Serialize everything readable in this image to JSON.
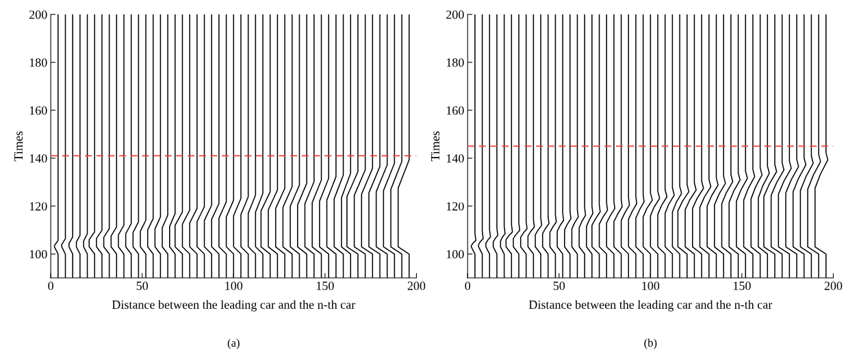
{
  "chart_data": [
    {
      "type": "line",
      "xlabel": "Distance between the leading car and the n-th car",
      "ylabel": "Times",
      "annotations": [
        "(a)"
      ],
      "xlim": [
        0,
        200
      ],
      "ylim": [
        90,
        200
      ],
      "xticks": [
        0,
        50,
        100,
        150,
        200
      ],
      "yticks": [
        100,
        120,
        140,
        160,
        180,
        200
      ],
      "ref_lines": [
        {
          "axis": "y",
          "value": 141,
          "color": "#e8403a",
          "line_style": "dashed"
        }
      ],
      "series": [
        {
          "color": "#000000",
          "x": [
            4,
            4,
            2,
            2,
            3,
            4,
            4
          ],
          "values": [
            90,
            100,
            103,
            103.5,
            104.6,
            105.7,
            200
          ]
        },
        {
          "color": "#000000",
          "x": [
            8,
            8,
            6,
            6,
            7,
            8,
            8
          ],
          "values": [
            90,
            100,
            103,
            104,
            105.2,
            106.4,
            200
          ]
        },
        {
          "color": "#000000",
          "x": [
            12,
            12,
            10,
            10,
            11,
            12,
            12
          ],
          "values": [
            90,
            100,
            103,
            104.5,
            105.8,
            107.1,
            200
          ]
        },
        {
          "color": "#000000",
          "x": [
            16,
            16,
            14,
            14,
            15,
            16,
            16
          ],
          "values": [
            90,
            100,
            103,
            105,
            106.4,
            107.8,
            200
          ]
        },
        {
          "color": "#000000",
          "x": [
            20,
            20,
            18,
            18,
            19,
            20,
            20
          ],
          "values": [
            90,
            100,
            103,
            105.5,
            107,
            108.5,
            200
          ]
        },
        {
          "color": "#000000",
          "x": [
            24,
            24,
            21,
            21,
            22.5,
            24,
            24
          ],
          "values": [
            90,
            100,
            103,
            106,
            107.6,
            109.2,
            200
          ]
        },
        {
          "color": "#000000",
          "x": [
            28,
            28,
            25,
            25,
            26.5,
            28,
            28
          ],
          "values": [
            90,
            100,
            103,
            106.5,
            108.2,
            109.9,
            200
          ]
        },
        {
          "color": "#000000",
          "x": [
            32,
            32,
            29,
            29,
            30.5,
            32,
            32
          ],
          "values": [
            90,
            100,
            103,
            107,
            108.8,
            110.6,
            200
          ]
        },
        {
          "color": "#000000",
          "x": [
            36,
            36,
            33,
            33,
            34.5,
            36,
            36
          ],
          "values": [
            90,
            100,
            103,
            107.5,
            109.4,
            111.3,
            200
          ]
        },
        {
          "color": "#000000",
          "x": [
            40,
            40,
            37,
            37,
            38.5,
            40,
            40
          ],
          "values": [
            90,
            100,
            103,
            108,
            110,
            112,
            200
          ]
        },
        {
          "color": "#000000",
          "x": [
            44,
            44,
            41,
            41,
            42.5,
            44,
            44
          ],
          "values": [
            90,
            100,
            103,
            108.5,
            110.6,
            112.7,
            200
          ]
        },
        {
          "color": "#000000",
          "x": [
            48,
            48,
            45,
            45,
            46.5,
            48,
            48
          ],
          "values": [
            90,
            100,
            103,
            109,
            111.2,
            113.4,
            200
          ]
        },
        {
          "color": "#000000",
          "x": [
            52,
            52,
            49,
            49,
            50.5,
            52,
            52
          ],
          "values": [
            90,
            100,
            103,
            109.5,
            111.8,
            114.1,
            200
          ]
        },
        {
          "color": "#000000",
          "x": [
            56,
            56,
            53,
            53,
            54.5,
            56,
            56
          ],
          "values": [
            90,
            100,
            103,
            110,
            112.4,
            114.8,
            200
          ]
        },
        {
          "color": "#000000",
          "x": [
            60,
            60,
            57,
            57,
            58.5,
            60,
            60
          ],
          "values": [
            90,
            100,
            103,
            110.5,
            113,
            115.5,
            200
          ]
        },
        {
          "color": "#000000",
          "x": [
            64,
            64,
            61,
            61,
            62.5,
            64,
            64
          ],
          "values": [
            90,
            100,
            103,
            111,
            113.6,
            116.2,
            200
          ]
        },
        {
          "color": "#000000",
          "x": [
            68,
            68,
            65,
            65,
            66.5,
            68,
            68
          ],
          "values": [
            90,
            100,
            103,
            111.5,
            114.2,
            116.9,
            200
          ]
        },
        {
          "color": "#000000",
          "x": [
            72,
            72,
            68,
            68,
            70,
            72,
            72
          ],
          "values": [
            90,
            100,
            103,
            112,
            114.8,
            117.6,
            200
          ]
        },
        {
          "color": "#000000",
          "x": [
            76,
            76,
            72,
            72,
            74,
            76,
            76
          ],
          "values": [
            90,
            100,
            103,
            112.5,
            115.4,
            118.3,
            200
          ]
        },
        {
          "color": "#000000",
          "x": [
            80,
            80,
            76,
            76,
            78,
            80,
            80
          ],
          "values": [
            90,
            100,
            103,
            113,
            116,
            119,
            200
          ]
        },
        {
          "color": "#000000",
          "x": [
            84,
            84,
            80,
            80,
            82,
            84,
            84
          ],
          "values": [
            90,
            100,
            103,
            113.5,
            116.6,
            119.7,
            200
          ]
        },
        {
          "color": "#000000",
          "x": [
            88,
            88,
            84,
            84,
            86,
            88,
            88
          ],
          "values": [
            90,
            100,
            103,
            114,
            117.2,
            120.4,
            200
          ]
        },
        {
          "color": "#000000",
          "x": [
            92,
            92,
            88,
            88,
            90,
            92,
            92
          ],
          "values": [
            90,
            100,
            103,
            114.5,
            117.8,
            121.1,
            200
          ]
        },
        {
          "color": "#000000",
          "x": [
            96,
            96,
            92,
            92,
            94,
            96,
            96
          ],
          "values": [
            90,
            100,
            103,
            115,
            118.4,
            121.8,
            200
          ]
        },
        {
          "color": "#000000",
          "x": [
            100,
            100,
            96,
            96,
            98,
            100,
            100
          ],
          "values": [
            90,
            100,
            103,
            115.5,
            119,
            122.5,
            200
          ]
        },
        {
          "color": "#000000",
          "x": [
            104,
            104,
            100,
            100,
            102,
            104,
            104
          ],
          "values": [
            90,
            100,
            103,
            116,
            119.6,
            123.2,
            200
          ]
        },
        {
          "color": "#000000",
          "x": [
            108,
            108,
            104,
            104,
            106,
            108,
            108
          ],
          "values": [
            90,
            100,
            103,
            116.5,
            120.2,
            123.9,
            200
          ]
        },
        {
          "color": "#000000",
          "x": [
            112,
            112,
            108,
            108,
            110,
            112,
            112
          ],
          "values": [
            90,
            100,
            103,
            117,
            120.8,
            124.6,
            200
          ]
        },
        {
          "color": "#000000",
          "x": [
            116,
            116,
            112,
            112,
            114,
            116,
            116
          ],
          "values": [
            90,
            100,
            103,
            117.5,
            121.4,
            125.3,
            200
          ]
        },
        {
          "color": "#000000",
          "x": [
            120,
            120,
            115,
            115,
            117.5,
            120,
            120
          ],
          "values": [
            90,
            100,
            103,
            118,
            122,
            126,
            200
          ]
        },
        {
          "color": "#000000",
          "x": [
            124,
            124,
            119,
            119,
            121.5,
            124,
            124
          ],
          "values": [
            90,
            100,
            103,
            118.5,
            122.6,
            126.7,
            200
          ]
        },
        {
          "color": "#000000",
          "x": [
            128,
            128,
            123,
            123,
            125.5,
            128,
            128
          ],
          "values": [
            90,
            100,
            103,
            119,
            123.2,
            127.4,
            200
          ]
        },
        {
          "color": "#000000",
          "x": [
            132,
            132,
            127,
            127,
            129.5,
            132,
            132
          ],
          "values": [
            90,
            100,
            103,
            119.5,
            123.8,
            128.1,
            200
          ]
        },
        {
          "color": "#000000",
          "x": [
            136,
            136,
            131,
            131,
            133.5,
            136,
            136
          ],
          "values": [
            90,
            100,
            103,
            120,
            124.4,
            128.8,
            200
          ]
        },
        {
          "color": "#000000",
          "x": [
            140,
            140,
            135,
            135,
            137.5,
            140,
            140
          ],
          "values": [
            90,
            100,
            103,
            120.5,
            125,
            129.5,
            200
          ]
        },
        {
          "color": "#000000",
          "x": [
            144,
            144,
            139,
            139,
            141.5,
            144,
            144
          ],
          "values": [
            90,
            100,
            103,
            121,
            125.6,
            130.2,
            200
          ]
        },
        {
          "color": "#000000",
          "x": [
            148,
            148,
            143,
            143,
            145.5,
            148,
            148
          ],
          "values": [
            90,
            100,
            103,
            121.5,
            126.2,
            130.9,
            200
          ]
        },
        {
          "color": "#000000",
          "x": [
            152,
            152,
            147,
            147,
            149.5,
            152,
            152
          ],
          "values": [
            90,
            100,
            103,
            122,
            126.8,
            131.6,
            200
          ]
        },
        {
          "color": "#000000",
          "x": [
            156,
            156,
            151,
            151,
            153.5,
            156,
            156
          ],
          "values": [
            90,
            100,
            103,
            122.5,
            127.4,
            132.3,
            200
          ]
        },
        {
          "color": "#000000",
          "x": [
            160,
            160,
            155,
            155,
            157.5,
            160,
            160
          ],
          "values": [
            90,
            100,
            103,
            123,
            128,
            133,
            200
          ]
        },
        {
          "color": "#000000",
          "x": [
            164,
            164,
            159,
            159,
            161.5,
            164,
            164
          ],
          "values": [
            90,
            100,
            103,
            123.5,
            128.6,
            133.7,
            200
          ]
        },
        {
          "color": "#000000",
          "x": [
            168,
            168,
            162,
            162,
            165,
            168,
            168
          ],
          "values": [
            90,
            100,
            103,
            124,
            129.2,
            134.4,
            200
          ]
        },
        {
          "color": "#000000",
          "x": [
            172,
            172,
            166,
            166,
            169,
            172,
            172
          ],
          "values": [
            90,
            100,
            103,
            124.5,
            129.8,
            135.1,
            200
          ]
        },
        {
          "color": "#000000",
          "x": [
            176,
            176,
            170,
            170,
            173,
            176,
            176
          ],
          "values": [
            90,
            100,
            103,
            125,
            130.4,
            135.8,
            200
          ]
        },
        {
          "color": "#000000",
          "x": [
            180,
            180,
            174,
            174,
            177,
            180,
            180
          ],
          "values": [
            90,
            100,
            103,
            125.5,
            131,
            136.5,
            200
          ]
        },
        {
          "color": "#000000",
          "x": [
            184,
            184,
            178,
            178,
            181,
            184,
            184
          ],
          "values": [
            90,
            100,
            103,
            126,
            131.6,
            137.2,
            200
          ]
        },
        {
          "color": "#000000",
          "x": [
            188,
            188,
            182,
            182,
            185,
            188,
            188
          ],
          "values": [
            90,
            100,
            103,
            126.5,
            132.2,
            137.9,
            200
          ]
        },
        {
          "color": "#000000",
          "x": [
            192,
            192,
            186,
            186,
            189,
            192,
            192
          ],
          "values": [
            90,
            100,
            103,
            127,
            132.8,
            138.6,
            200
          ]
        },
        {
          "color": "#000000",
          "x": [
            196,
            196,
            190,
            190,
            193,
            196,
            196
          ],
          "values": [
            90,
            100,
            103,
            127.5,
            133.4,
            139.3,
            200
          ]
        }
      ]
    },
    {
      "type": "line",
      "xlabel": "Distance between the leading car and the n-th car",
      "ylabel": "Times",
      "annotations": [
        "(b)"
      ],
      "xlim": [
        0,
        200
      ],
      "ylim": [
        90,
        200
      ],
      "xticks": [
        0,
        50,
        100,
        150,
        200
      ],
      "yticks": [
        100,
        120,
        140,
        160,
        180,
        200
      ],
      "ref_lines": [
        {
          "axis": "y",
          "value": 145,
          "color": "#e8403a",
          "line_style": "dashed"
        }
      ],
      "series": [
        {
          "color": "#000000",
          "x": [
            4,
            4,
            2,
            2,
            3,
            4.5,
            4,
            4
          ],
          "values": [
            90,
            100,
            103,
            103.5,
            104.6,
            105.7,
            108.7,
            200
          ]
        },
        {
          "color": "#000000",
          "x": [
            8,
            8,
            6,
            6,
            7,
            8.5,
            8,
            8
          ],
          "values": [
            90,
            100,
            103,
            104,
            105.2,
            106.4,
            109.4,
            200
          ]
        },
        {
          "color": "#000000",
          "x": [
            12,
            12,
            10,
            10,
            11,
            12.5,
            12,
            12
          ],
          "values": [
            90,
            100,
            103,
            104.5,
            105.8,
            107.1,
            110.1,
            200
          ]
        },
        {
          "color": "#000000",
          "x": [
            16,
            16,
            14,
            14,
            15,
            16.5,
            16,
            16
          ],
          "values": [
            90,
            100,
            103,
            105,
            106.4,
            107.8,
            110.8,
            200
          ]
        },
        {
          "color": "#000000",
          "x": [
            20,
            20,
            18,
            18,
            19,
            20.5,
            20,
            20
          ],
          "values": [
            90,
            100,
            103,
            105.5,
            107,
            108.5,
            111.5,
            200
          ]
        },
        {
          "color": "#000000",
          "x": [
            24,
            24,
            21,
            21,
            22.5,
            24.5,
            24,
            24
          ],
          "values": [
            90,
            100,
            103,
            106,
            107.6,
            109.2,
            112.2,
            200
          ]
        },
        {
          "color": "#000000",
          "x": [
            28,
            28,
            25,
            25,
            26.5,
            28.5,
            28,
            28
          ],
          "values": [
            90,
            100,
            103,
            106.5,
            108.2,
            109.9,
            112.9,
            200
          ]
        },
        {
          "color": "#000000",
          "x": [
            32,
            32,
            29,
            29,
            30.5,
            32.5,
            32,
            32
          ],
          "values": [
            90,
            100,
            103,
            107,
            108.8,
            110.6,
            113.6,
            200
          ]
        },
        {
          "color": "#000000",
          "x": [
            36,
            36,
            33,
            33,
            34.5,
            36.5,
            36,
            36
          ],
          "values": [
            90,
            100,
            103,
            107.5,
            109.4,
            111.3,
            114.3,
            200
          ]
        },
        {
          "color": "#000000",
          "x": [
            40,
            40,
            37,
            37,
            38.5,
            40.5,
            40,
            40
          ],
          "values": [
            90,
            100,
            103,
            108,
            110,
            112,
            115,
            200
          ]
        },
        {
          "color": "#000000",
          "x": [
            44,
            44,
            41,
            41,
            42.5,
            44.5,
            44,
            44
          ],
          "values": [
            90,
            100,
            103,
            108.5,
            110.6,
            112.7,
            115.7,
            200
          ]
        },
        {
          "color": "#000000",
          "x": [
            48,
            48,
            45,
            45,
            46.5,
            48.5,
            48,
            48
          ],
          "values": [
            90,
            100,
            103,
            109,
            111.2,
            113.4,
            116.4,
            200
          ]
        },
        {
          "color": "#000000",
          "x": [
            52,
            52,
            49,
            49,
            50.5,
            52.5,
            52,
            52
          ],
          "values": [
            90,
            100,
            103,
            109.5,
            111.8,
            114.1,
            117.1,
            200
          ]
        },
        {
          "color": "#000000",
          "x": [
            56,
            56,
            53,
            53,
            54.5,
            56.5,
            56,
            56
          ],
          "values": [
            90,
            100,
            103,
            110,
            112.4,
            114.8,
            117.8,
            200
          ]
        },
        {
          "color": "#000000",
          "x": [
            60,
            60,
            57,
            57,
            58.5,
            60.5,
            60,
            60
          ],
          "values": [
            90,
            100,
            103,
            110.5,
            113,
            115.5,
            118.5,
            200
          ]
        },
        {
          "color": "#000000",
          "x": [
            64,
            64,
            61,
            61,
            62.5,
            64.5,
            64,
            64
          ],
          "values": [
            90,
            100,
            103,
            111,
            113.6,
            116.2,
            119.2,
            200
          ]
        },
        {
          "color": "#000000",
          "x": [
            68,
            68,
            65,
            65,
            66.5,
            68.5,
            68,
            68
          ],
          "values": [
            90,
            100,
            103,
            111.5,
            114.2,
            116.9,
            119.9,
            200
          ]
        },
        {
          "color": "#000000",
          "x": [
            72,
            72,
            68,
            68,
            70,
            72.5,
            72,
            72
          ],
          "values": [
            90,
            100,
            103,
            112,
            114.8,
            117.6,
            120.6,
            200
          ]
        },
        {
          "color": "#000000",
          "x": [
            76,
            76,
            72,
            72,
            74,
            76.5,
            76,
            76
          ],
          "values": [
            90,
            100,
            103,
            112.5,
            115.4,
            118.3,
            121.3,
            200
          ]
        },
        {
          "color": "#000000",
          "x": [
            80,
            80,
            76,
            76,
            78,
            80.5,
            80,
            80
          ],
          "values": [
            90,
            100,
            103,
            113,
            116,
            119,
            122,
            200
          ]
        },
        {
          "color": "#000000",
          "x": [
            84,
            84,
            80,
            80,
            82,
            84.5,
            84,
            84
          ],
          "values": [
            90,
            100,
            103,
            113.5,
            116.6,
            119.7,
            122.7,
            200
          ]
        },
        {
          "color": "#000000",
          "x": [
            88,
            88,
            84,
            84,
            86,
            88.5,
            88,
            88
          ],
          "values": [
            90,
            100,
            103,
            114,
            117.2,
            120.4,
            123.4,
            200
          ]
        },
        {
          "color": "#000000",
          "x": [
            92,
            92,
            88,
            88,
            90,
            92.5,
            92,
            92
          ],
          "values": [
            90,
            100,
            103,
            114.5,
            117.8,
            121.1,
            124.1,
            200
          ]
        },
        {
          "color": "#000000",
          "x": [
            96,
            96,
            92,
            92,
            94,
            96.5,
            96,
            96
          ],
          "values": [
            90,
            100,
            103,
            115,
            118.4,
            121.8,
            124.8,
            200
          ]
        },
        {
          "color": "#000000",
          "x": [
            100,
            100,
            96,
            96,
            98,
            101,
            100,
            100
          ],
          "values": [
            90,
            100,
            103,
            115.5,
            119,
            122.5,
            125.5,
            200
          ]
        },
        {
          "color": "#000000",
          "x": [
            104,
            104,
            100,
            100,
            102,
            105,
            104,
            104
          ],
          "values": [
            90,
            100,
            103,
            116,
            119.6,
            123.2,
            126.2,
            200
          ]
        },
        {
          "color": "#000000",
          "x": [
            108,
            108,
            104,
            104,
            106,
            109,
            108,
            108
          ],
          "values": [
            90,
            100,
            103,
            116.5,
            120.2,
            123.9,
            126.9,
            200
          ]
        },
        {
          "color": "#000000",
          "x": [
            112,
            112,
            108,
            108,
            110,
            113,
            112,
            112
          ],
          "values": [
            90,
            100,
            103,
            117,
            120.8,
            124.6,
            127.6,
            200
          ]
        },
        {
          "color": "#000000",
          "x": [
            116,
            116,
            112,
            112,
            114,
            117,
            116,
            116
          ],
          "values": [
            90,
            100,
            103,
            117.5,
            121.4,
            125.3,
            128.3,
            200
          ]
        },
        {
          "color": "#000000",
          "x": [
            120,
            120,
            115,
            115,
            117.5,
            121,
            120,
            120
          ],
          "values": [
            90,
            100,
            103,
            118,
            122,
            126,
            129,
            200
          ]
        },
        {
          "color": "#000000",
          "x": [
            124,
            124,
            119,
            119,
            121.5,
            125,
            124,
            124
          ],
          "values": [
            90,
            100,
            103,
            118.5,
            122.6,
            126.7,
            129.7,
            200
          ]
        },
        {
          "color": "#000000",
          "x": [
            128,
            128,
            123,
            123,
            125.5,
            129,
            128,
            128
          ],
          "values": [
            90,
            100,
            103,
            119,
            123.2,
            127.4,
            130.4,
            200
          ]
        },
        {
          "color": "#000000",
          "x": [
            132,
            132,
            127,
            127,
            129.5,
            133,
            132,
            132
          ],
          "values": [
            90,
            100,
            103,
            119.5,
            123.8,
            128.1,
            131.1,
            200
          ]
        },
        {
          "color": "#000000",
          "x": [
            136,
            136,
            131,
            131,
            133.5,
            137,
            136,
            136
          ],
          "values": [
            90,
            100,
            103,
            120,
            124.4,
            128.8,
            131.8,
            200
          ]
        },
        {
          "color": "#000000",
          "x": [
            140,
            140,
            135,
            135,
            137.5,
            141,
            140,
            140
          ],
          "values": [
            90,
            100,
            103,
            120.5,
            125,
            129.5,
            132.5,
            200
          ]
        },
        {
          "color": "#000000",
          "x": [
            144,
            144,
            139,
            139,
            141.5,
            145,
            144,
            144
          ],
          "values": [
            90,
            100,
            103,
            121,
            125.6,
            130.2,
            133.2,
            200
          ]
        },
        {
          "color": "#000000",
          "x": [
            148,
            148,
            143,
            143,
            145.5,
            149,
            148,
            148
          ],
          "values": [
            90,
            100,
            103,
            121.5,
            126.2,
            130.9,
            133.9,
            200
          ]
        },
        {
          "color": "#000000",
          "x": [
            152,
            152,
            147,
            147,
            149.5,
            153,
            152,
            152
          ],
          "values": [
            90,
            100,
            103,
            122,
            126.8,
            131.6,
            134.6,
            200
          ]
        },
        {
          "color": "#000000",
          "x": [
            156,
            156,
            151,
            151,
            153.5,
            157,
            156,
            156
          ],
          "values": [
            90,
            100,
            103,
            122.5,
            127.4,
            132.3,
            135.3,
            200
          ]
        },
        {
          "color": "#000000",
          "x": [
            160,
            160,
            155,
            155,
            157.5,
            161,
            160,
            160
          ],
          "values": [
            90,
            100,
            103,
            123,
            128,
            133,
            136,
            200
          ]
        },
        {
          "color": "#000000",
          "x": [
            164,
            164,
            159,
            159,
            161.5,
            165,
            164,
            164
          ],
          "values": [
            90,
            100,
            103,
            123.5,
            128.6,
            133.7,
            136.7,
            200
          ]
        },
        {
          "color": "#000000",
          "x": [
            168,
            168,
            162,
            162,
            165,
            169,
            168,
            168
          ],
          "values": [
            90,
            100,
            103,
            124,
            129.2,
            134.4,
            137.4,
            200
          ]
        },
        {
          "color": "#000000",
          "x": [
            172,
            172,
            166,
            166,
            169,
            173,
            172,
            172
          ],
          "values": [
            90,
            100,
            103,
            124.5,
            129.8,
            135.1,
            138.1,
            200
          ]
        },
        {
          "color": "#000000",
          "x": [
            176,
            176,
            170,
            170,
            173,
            177,
            176,
            176
          ],
          "values": [
            90,
            100,
            103,
            125,
            130.4,
            135.8,
            138.8,
            200
          ]
        },
        {
          "color": "#000000",
          "x": [
            180,
            180,
            174,
            174,
            177,
            181,
            180,
            180
          ],
          "values": [
            90,
            100,
            103,
            125.5,
            131,
            136.5,
            139.5,
            200
          ]
        },
        {
          "color": "#000000",
          "x": [
            184,
            184,
            178,
            178,
            181,
            185,
            184,
            184
          ],
          "values": [
            90,
            100,
            103,
            126,
            131.6,
            137.2,
            140.2,
            200
          ]
        },
        {
          "color": "#000000",
          "x": [
            188,
            188,
            182,
            182,
            185,
            189,
            188,
            188
          ],
          "values": [
            90,
            100,
            103,
            126.5,
            132.2,
            137.9,
            140.9,
            200
          ]
        },
        {
          "color": "#000000",
          "x": [
            192,
            192,
            186,
            186,
            189,
            193,
            192,
            192
          ],
          "values": [
            90,
            100,
            103,
            127,
            132.8,
            138.6,
            141.6,
            200
          ]
        },
        {
          "color": "#000000",
          "x": [
            196,
            196,
            190,
            190,
            193,
            197,
            196,
            196
          ],
          "values": [
            90,
            100,
            103,
            127.5,
            133.4,
            139.3,
            142.3,
            200
          ]
        }
      ]
    }
  ]
}
